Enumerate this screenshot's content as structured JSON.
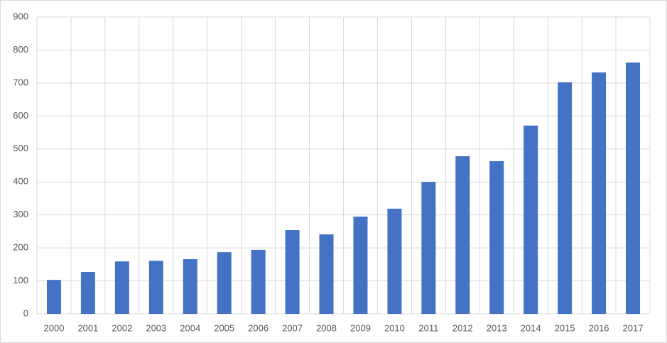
{
  "chart_data": {
    "type": "bar",
    "categories": [
      "2000",
      "2001",
      "2002",
      "2003",
      "2004",
      "2005",
      "2006",
      "2007",
      "2008",
      "2009",
      "2010",
      "2011",
      "2012",
      "2013",
      "2014",
      "2015",
      "2016",
      "2017"
    ],
    "values": [
      103,
      127,
      159,
      161,
      166,
      187,
      194,
      254,
      241,
      295,
      319,
      400,
      478,
      463,
      571,
      702,
      732,
      762
    ],
    "color": "#4472c4",
    "ylim": [
      0,
      900
    ],
    "yticks": [
      0,
      100,
      200,
      300,
      400,
      500,
      600,
      700,
      800,
      900
    ],
    "grid": true
  }
}
